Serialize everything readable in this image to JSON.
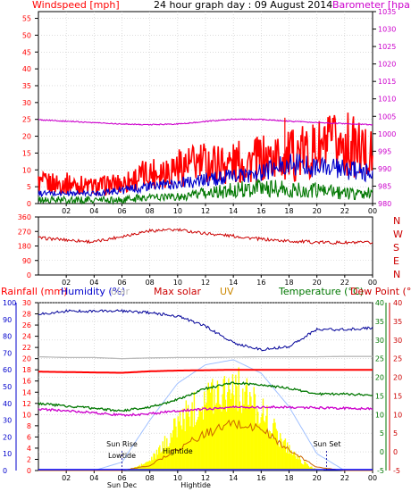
{
  "chart_data": [
    {
      "type": "line",
      "title": "24 hour graph day : 09 August 2014",
      "ylabel": "Windspeed [mph]",
      "y2label": "Barometer [hpa]",
      "x_ticks": [
        "02",
        "04",
        "06",
        "08",
        "10",
        "12",
        "14",
        "16",
        "18",
        "20",
        "22",
        "00"
      ],
      "y_ticks": [
        0,
        5,
        10,
        15,
        20,
        25,
        30,
        35,
        40,
        45,
        50,
        55
      ],
      "y2_ticks": [
        980,
        985,
        990,
        995,
        1000,
        1005,
        1010,
        1015,
        1020,
        1025,
        1030,
        1035
      ],
      "ylim": [
        0,
        57
      ],
      "y2lim": [
        980,
        1035
      ],
      "x_hours": [
        0,
        2,
        4,
        6,
        8,
        10,
        12,
        14,
        16,
        18,
        20,
        22,
        24
      ],
      "series": [
        {
          "name": "Gust",
          "color": "#ff0000",
          "values": [
            6,
            6,
            5,
            6,
            9,
            11,
            12,
            12,
            13,
            14,
            16,
            18,
            14
          ]
        },
        {
          "name": "Windspeed",
          "color": "#0000cc",
          "values": [
            3,
            3,
            3,
            4,
            5,
            6,
            7,
            8,
            9,
            12,
            11,
            10,
            9
          ]
        },
        {
          "name": "Wind low",
          "color": "#007700",
          "values": [
            1,
            1,
            1,
            1,
            2,
            2,
            3,
            4,
            5,
            4,
            4,
            3,
            3
          ]
        },
        {
          "name": "Barometer",
          "axis": "y2",
          "color": "#cc00cc",
          "values": [
            1004,
            1003.6,
            1003.2,
            1002.8,
            1002.6,
            1002.8,
            1003.5,
            1004.2,
            1004.1,
            1003.6,
            1003.2,
            1002.9,
            1002.6
          ]
        }
      ],
      "colors": {
        "axis_left": "#ff0000",
        "axis_right": "#cc00cc"
      }
    },
    {
      "type": "line",
      "title": "",
      "y_ticks": [
        0,
        90,
        180,
        270,
        360
      ],
      "ylim": [
        0,
        360
      ],
      "x_ticks": [
        "02",
        "04",
        "06",
        "08",
        "10",
        "12",
        "14",
        "16",
        "18",
        "20",
        "22",
        "00"
      ],
      "compass_labels": [
        "N",
        "W",
        "S",
        "E",
        "N"
      ],
      "x_hours": [
        0,
        2,
        4,
        6,
        8,
        10,
        12,
        14,
        16,
        18,
        20,
        22,
        24
      ],
      "series": [
        {
          "name": "Wind direction",
          "color": "#cc0000",
          "values": [
            230,
            218,
            205,
            240,
            275,
            280,
            258,
            242,
            222,
            210,
            203,
            200,
            200
          ]
        }
      ]
    },
    {
      "type": "line",
      "title": "",
      "labels": {
        "rainfall": "Rainfall (mm)",
        "humidity": "Humidity (%)",
        "solar": "olar",
        "max_solar": "Max solar",
        "uv": "UV",
        "temperature": "Temperature (°C)",
        "dewpoint": "Dew Point (°C)"
      },
      "axis_ticks": {
        "humidity": [
          0,
          10,
          20,
          30,
          40,
          50,
          60,
          70,
          80,
          90,
          100
        ],
        "rainfall": [
          0,
          2,
          4,
          6,
          8,
          10,
          12,
          14,
          16,
          18,
          20,
          22,
          24,
          26,
          28,
          30
        ],
        "temperature": [
          -5,
          0,
          5,
          10,
          15,
          20,
          25,
          30,
          35,
          40
        ],
        "dewpoint": [
          -5,
          0,
          5,
          10,
          15,
          20,
          25,
          30,
          35,
          40
        ]
      },
      "x_ticks": [
        "02",
        "04",
        "06",
        "08",
        "10",
        "12",
        "14",
        "16",
        "18",
        "20",
        "22",
        "00"
      ],
      "annotations": [
        {
          "text": "Sun Rise",
          "hour": 6
        },
        {
          "text": "Lowtide",
          "hour": 6
        },
        {
          "text": "Sun Dec",
          "hour": 6
        },
        {
          "text": "Hightide",
          "hour": 10
        },
        {
          "text": "Hightide",
          "hour": 11.3
        },
        {
          "text": "Sun Set",
          "hour": 20.7
        }
      ],
      "x_hours": [
        0,
        2,
        4,
        6,
        8,
        10,
        12,
        14,
        16,
        18,
        20,
        22,
        24
      ],
      "series": [
        {
          "name": "Humidity",
          "axis": "humidity",
          "color": "#000099",
          "values": [
            93,
            95,
            95,
            95,
            94,
            92,
            86,
            76,
            72,
            74,
            84,
            84,
            85
          ]
        },
        {
          "name": "Solar",
          "axis": "solar_fraction",
          "color": "#ffff00",
          "values": [
            0,
            0,
            0,
            0.05,
            0.25,
            0.7,
            0.9,
            1.0,
            0.8,
            0.45,
            0.1,
            0,
            0
          ]
        },
        {
          "name": "Max solar",
          "axis": "humidity",
          "color": "#a0c0ff",
          "values": [
            0,
            0,
            0,
            5,
            30,
            52,
            63,
            66,
            58,
            38,
            10,
            0,
            0
          ]
        },
        {
          "name": "UV",
          "axis": "humidity",
          "color": "#cc6600",
          "values": [
            0,
            0,
            0,
            0,
            3,
            13,
            22,
            28,
            25,
            12,
            2,
            0,
            0
          ]
        },
        {
          "name": "Max temperature",
          "axis": "temperature",
          "color": "#bbbbbb",
          "values": [
            25.5,
            25.3,
            25.3,
            25,
            25.2,
            25.3,
            25.3,
            25.4,
            25.5,
            25.5,
            25.5,
            25.6,
            25.6
          ]
        },
        {
          "name": "Temperature",
          "axis": "temperature",
          "color": "#ff0000",
          "values": [
            21.5,
            21.4,
            21.3,
            21.2,
            21.6,
            21.8,
            21.9,
            22,
            22,
            22,
            22,
            22,
            22
          ]
        },
        {
          "name": "Dew point",
          "axis": "temperature",
          "color": "#007700",
          "values": [
            13,
            12.3,
            11.7,
            11,
            12,
            14,
            17,
            18.5,
            18,
            17,
            15.5,
            15.5,
            15.3
          ]
        },
        {
          "name": "Inside temperature",
          "axis": "temperature",
          "color": "#cc00cc",
          "values": [
            11.5,
            11,
            10.5,
            9.8,
            10.2,
            11,
            11.5,
            12,
            12,
            12,
            11.8,
            11.7,
            11.6
          ]
        },
        {
          "name": "Rainfall",
          "axis": "rainfall",
          "color": "#0000ff",
          "values": [
            0,
            0,
            0,
            0,
            0,
            0,
            0,
            0,
            0,
            0,
            0,
            0,
            0
          ]
        }
      ],
      "colors": {
        "rainfall_label": "#ff0000",
        "humidity_label": "#0000cc",
        "solar_label": "#b8b8b8",
        "max_solar_label": "#cc0000",
        "uv_label": "#cc8800",
        "temperature_label": "#007700",
        "dewpoint_label": "#cc0000"
      }
    }
  ]
}
